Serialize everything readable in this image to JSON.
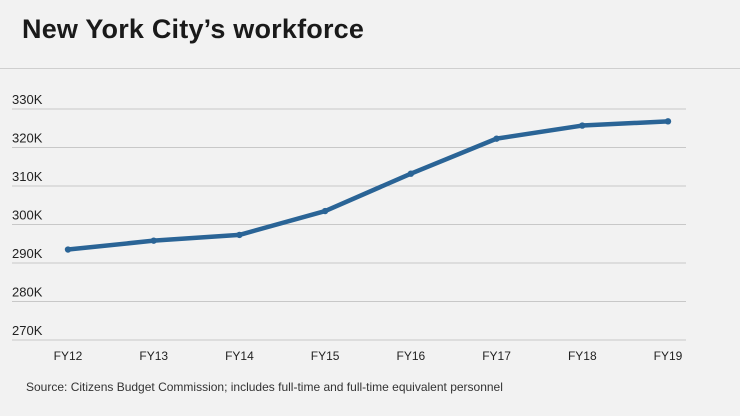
{
  "title": "New York City’s workforce",
  "source": "Source: Citizens Budget Commission; includes full-time and full-time equivalent personnel",
  "colors": {
    "line": "#2a6496",
    "grid": "#c8c8c8",
    "text": "#222222",
    "background": "#f2f2f2"
  },
  "chart_data": {
    "type": "line",
    "title": "New York City’s workforce",
    "xlabel": "",
    "ylabel": "",
    "categories": [
      "FY12",
      "FY13",
      "FY14",
      "FY15",
      "FY16",
      "FY17",
      "FY18",
      "FY19"
    ],
    "series": [
      {
        "values": [
          293500,
          295800,
          297300,
          303500,
          313200,
          322300,
          325700,
          326800
        ]
      }
    ],
    "ylim": [
      270000,
      330000
    ],
    "yticks": [
      270000,
      280000,
      290000,
      300000,
      310000,
      320000,
      330000
    ],
    "ytick_labels": [
      "270K",
      "280K",
      "290K",
      "300K",
      "310K",
      "320K",
      "330K"
    ],
    "grid": true,
    "legend": "none"
  }
}
